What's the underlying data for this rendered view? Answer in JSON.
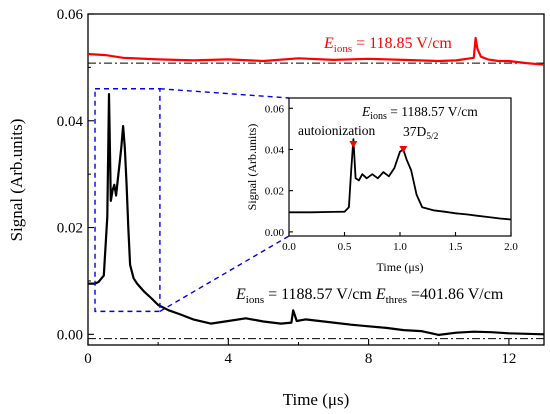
{
  "chart_data": [
    {
      "type": "line",
      "xlabel": "Time (μs)",
      "ylabel": "Signal (Arb.units)",
      "xlim": [
        0,
        13
      ],
      "ylim": [
        -0.002,
        0.06
      ],
      "x_ticks": [
        "0",
        "4",
        "8",
        "12"
      ],
      "y_ticks": [
        "0.00",
        "0.02",
        "0.04",
        "0.06"
      ],
      "grid": false,
      "series": [
        {
          "color": "#000000",
          "x": [
            0,
            0.2,
            0.3,
            0.45,
            0.55,
            0.6,
            0.65,
            0.7,
            0.75,
            0.8,
            0.85,
            0.9,
            0.95,
            1.0,
            1.05,
            1.1,
            1.15,
            1.2,
            1.3,
            1.4,
            1.6,
            1.8,
            2.0,
            2.3,
            2.6,
            3.0,
            3.5,
            4.0,
            4.5,
            5.0,
            5.5,
            5.8,
            5.85,
            5.95,
            6.2,
            6.6,
            7.0,
            7.5,
            8.0,
            8.5,
            9.0,
            9.5,
            10.0,
            10.5,
            11.0,
            11.5,
            12.0,
            12.5,
            13.0
          ],
          "y": [
            0.0095,
            0.0095,
            0.0098,
            0.011,
            0.022,
            0.045,
            0.025,
            0.027,
            0.028,
            0.026,
            0.029,
            0.032,
            0.035,
            0.039,
            0.035,
            0.028,
            0.02,
            0.013,
            0.0105,
            0.0095,
            0.008,
            0.0068,
            0.0055,
            0.0045,
            0.0038,
            0.0028,
            0.002,
            0.0025,
            0.003,
            0.0024,
            0.002,
            0.0022,
            0.0045,
            0.0025,
            0.0028,
            0.0025,
            0.0022,
            0.0018,
            0.0015,
            0.0012,
            0.0008,
            0.0006,
            -0.0001,
            0.0003,
            0.0005,
            0.0004,
            0.0002,
            0.0001,
            0.0
          ]
        },
        {
          "color": "#ff0000",
          "x": [
            0,
            0.5,
            1,
            2,
            3,
            4,
            5,
            6,
            7,
            8,
            9,
            10,
            10.5,
            11.0,
            11.05,
            11.1,
            11.2,
            11.4,
            11.7,
            12,
            12.5,
            13
          ],
          "y": [
            0.0525,
            0.0523,
            0.0518,
            0.0515,
            0.0513,
            0.0515,
            0.0512,
            0.0517,
            0.0514,
            0.0516,
            0.0514,
            0.0512,
            0.0513,
            0.0518,
            0.0555,
            0.0535,
            0.052,
            0.0515,
            0.0512,
            0.0512,
            0.0508,
            0.0505
          ]
        }
      ],
      "reference_lines": [
        0.0508,
        -0.0008
      ],
      "annotations": {
        "red": {
          "prefix": "E",
          "sub": "ions",
          "rest": " = 118.85 V/cm"
        },
        "black_e": {
          "prefix": "E",
          "sub": "ions",
          "rest": " = 1188.57 V/cm "
        },
        "black_thres": {
          "prefix": "E",
          "sub": "thres",
          "rest": " =401.86 V/cm"
        }
      },
      "zoom_box": {
        "x": [
          0.2,
          2.05
        ],
        "y": [
          0.0043,
          0.046
        ]
      }
    },
    {
      "type": "line",
      "xlabel": "Time (μs)",
      "ylabel": "Signal (Arb.units)",
      "xlim": [
        0.0,
        2.0
      ],
      "ylim": [
        -0.002,
        0.065
      ],
      "x_ticks": [
        "0.0",
        "0.5",
        "1.0",
        "1.5",
        "2.0"
      ],
      "y_ticks": [
        "0.00",
        "0.02",
        "0.04",
        "0.06"
      ],
      "grid": false,
      "series": [
        {
          "color": "#000000",
          "x": [
            0.0,
            0.2,
            0.4,
            0.5,
            0.54,
            0.56,
            0.58,
            0.6,
            0.63,
            0.66,
            0.7,
            0.75,
            0.8,
            0.85,
            0.9,
            0.95,
            1.0,
            1.03,
            1.06,
            1.1,
            1.15,
            1.2,
            1.3,
            1.4,
            1.5,
            1.6,
            1.7,
            1.8,
            1.9,
            2.0
          ],
          "y": [
            0.0095,
            0.0095,
            0.0097,
            0.0098,
            0.012,
            0.03,
            0.045,
            0.026,
            0.025,
            0.028,
            0.026,
            0.028,
            0.026,
            0.029,
            0.027,
            0.031,
            0.039,
            0.04,
            0.035,
            0.03,
            0.018,
            0.012,
            0.0105,
            0.0098,
            0.009,
            0.0085,
            0.0078,
            0.0072,
            0.0065,
            0.006
          ]
        }
      ],
      "annotations": {
        "field": {
          "prefix": "E",
          "sub": "ions",
          "rest": " = 1188.57 V/cm"
        },
        "autoionization": "autoionization",
        "rydberg": {
          "main": "37D",
          "sub": "5/2"
        },
        "markers_x": [
          0.58,
          1.03
        ]
      }
    }
  ]
}
